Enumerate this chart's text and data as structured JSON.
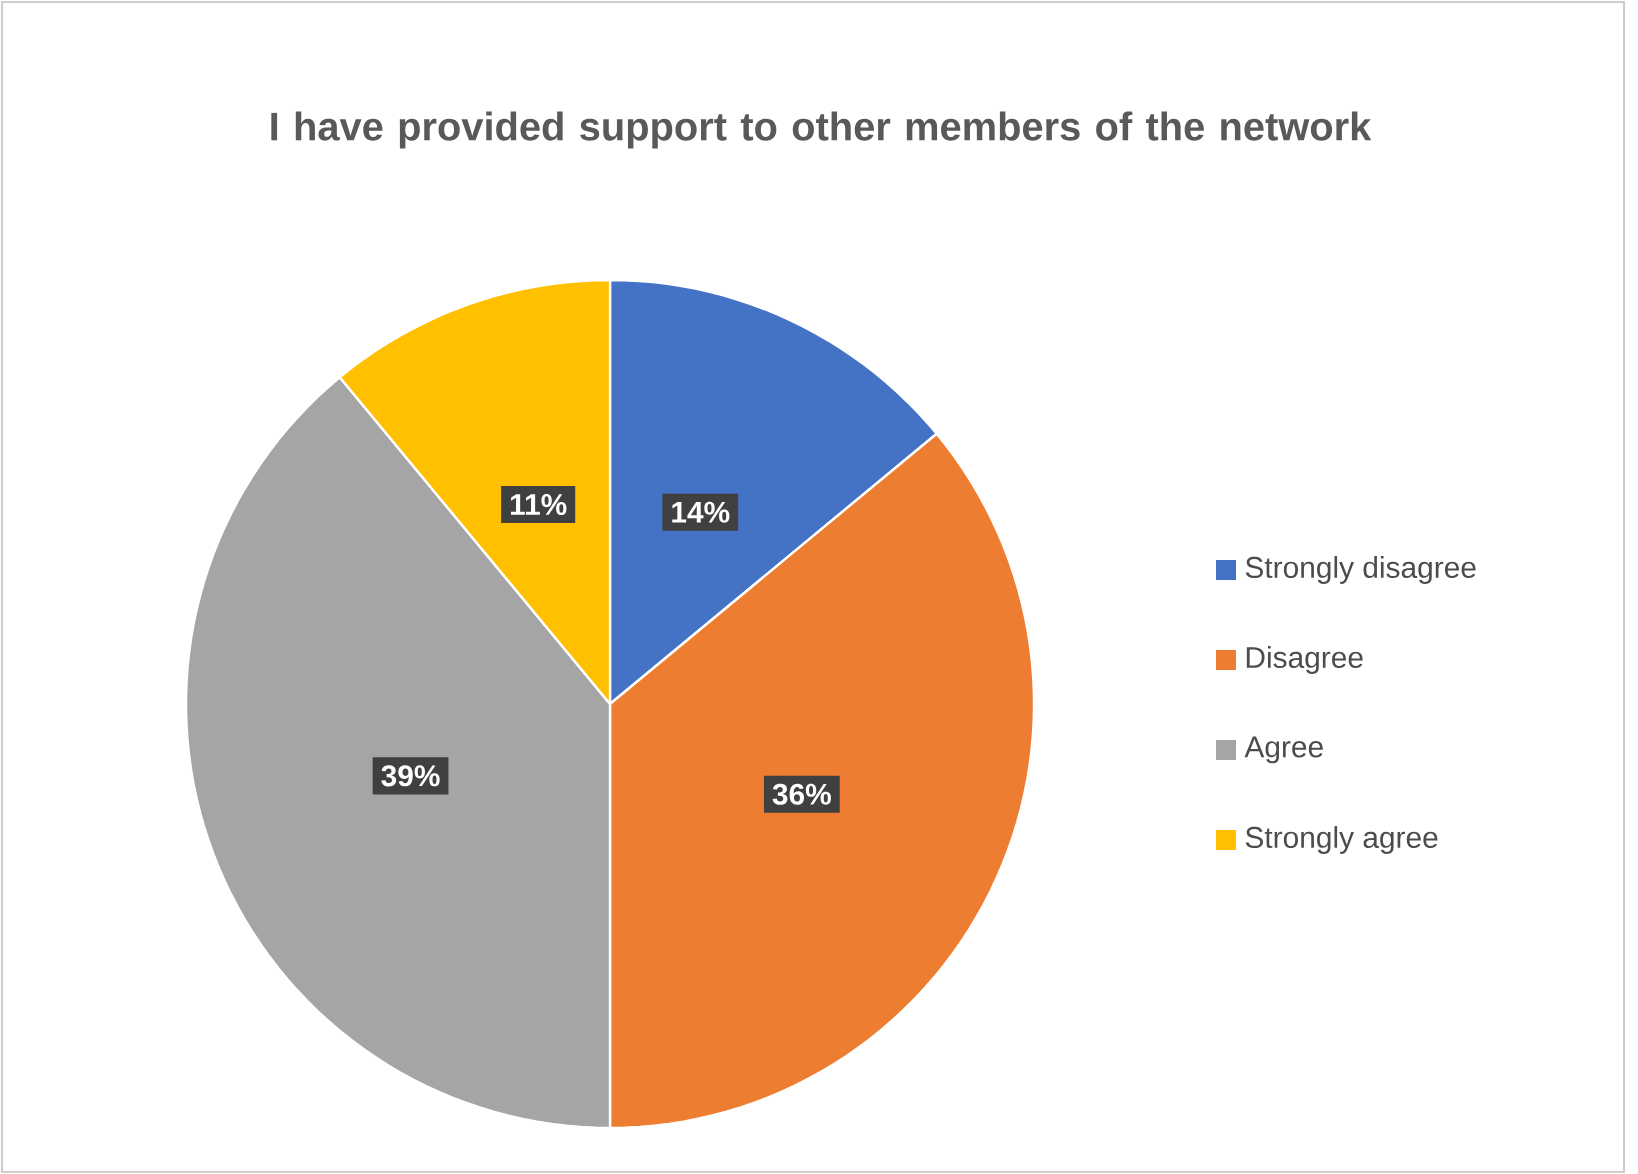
{
  "chart_data": {
    "type": "pie",
    "title": "I have provided support to other members of the network",
    "categories": [
      "Strongly disagree",
      "Disagree",
      "Agree",
      "Strongly agree"
    ],
    "values": [
      14,
      36,
      39,
      11
    ],
    "colors": [
      "#4472c4",
      "#ed7d31",
      "#a5a5a5",
      "#ffc000"
    ],
    "value_labels": [
      "14%",
      "36%",
      "39%",
      "11%"
    ],
    "legend": "right"
  }
}
